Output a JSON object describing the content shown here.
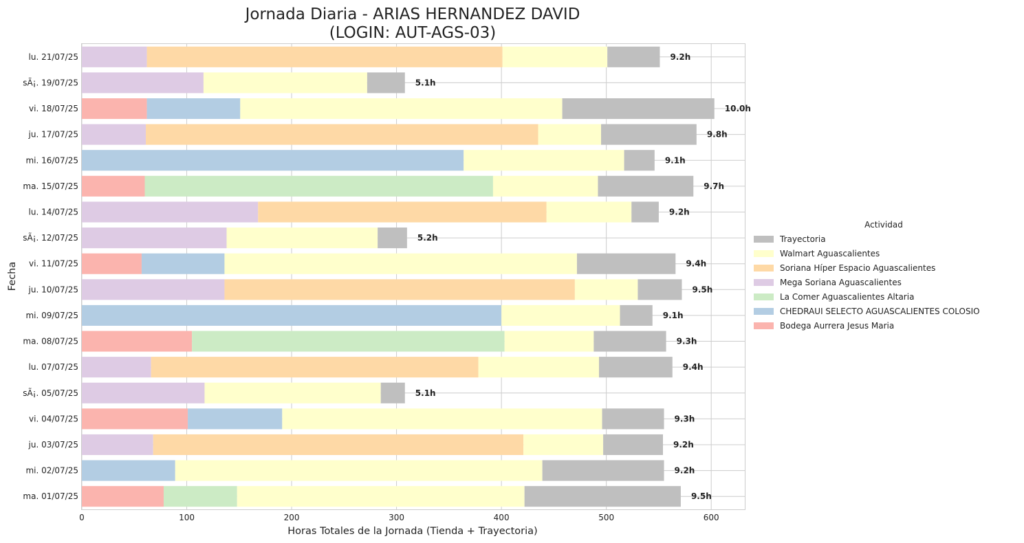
{
  "chart_data": {
    "type": "bar",
    "orientation": "horizontal",
    "stacked": true,
    "title": "Jornada Diaria - ARIAS HERNANDEZ DAVID",
    "subtitle": "(LOGIN: AUT-AGS-03)",
    "xlabel": "Horas Totales de la Jornada (Tienda + Trayectoria)",
    "ylabel": "Fecha",
    "xlim": [
      0,
      632
    ],
    "xticks": [
      0,
      100,
      200,
      300,
      400,
      500,
      600
    ],
    "grid": true,
    "legend_title": "Actividad",
    "legend_position": "center-right",
    "categories": [
      "lu. 21/07/25",
      "sÃ¡. 19/07/25",
      "vi. 18/07/25",
      "ju. 17/07/25",
      "mi. 16/07/25",
      "ma. 15/07/25",
      "lu. 14/07/25",
      "sÃ¡. 12/07/25",
      "vi. 11/07/25",
      "ju. 10/07/25",
      "mi. 09/07/25",
      "ma. 08/07/25",
      "lu. 07/07/25",
      "sÃ¡. 05/07/25",
      "vi. 04/07/25",
      "ju. 03/07/25",
      "mi. 02/07/25",
      "ma. 01/07/25"
    ],
    "totals": [
      "9.2h",
      "5.1h",
      "10.0h",
      "9.8h",
      "9.1h",
      "9.7h",
      "9.2h",
      "5.2h",
      "9.4h",
      "9.5h",
      "9.1h",
      "9.3h",
      "9.4h",
      "5.1h",
      "9.3h",
      "9.2h",
      "9.2h",
      "9.5h"
    ],
    "series": [
      {
        "name": "Bodega Aurrera Jesus Maria",
        "color": "#fbb4ae",
        "values": [
          0,
          0,
          62,
          0,
          0,
          60,
          0,
          0,
          57,
          0,
          0,
          105,
          0,
          0,
          101,
          0,
          0,
          78
        ]
      },
      {
        "name": "CHEDRAUI SELECTO AGUASCALIENTES  COLOSIO",
        "color": "#b3cde3",
        "values": [
          0,
          0,
          89,
          0,
          364,
          0,
          0,
          0,
          79,
          0,
          400,
          0,
          0,
          0,
          90,
          0,
          89,
          0
        ]
      },
      {
        "name": "La Comer Aguascalientes Altaria",
        "color": "#ccebc5",
        "values": [
          0,
          0,
          0,
          0,
          0,
          332,
          0,
          0,
          0,
          0,
          0,
          298,
          0,
          0,
          0,
          0,
          0,
          70
        ]
      },
      {
        "name": "Mega Soriana Aguascalientes",
        "color": "#decbe4",
        "values": [
          62,
          116,
          0,
          61,
          0,
          0,
          168,
          138,
          0,
          136,
          0,
          0,
          66,
          117,
          0,
          68,
          0,
          0
        ]
      },
      {
        "name": "Soriana Híper Espacio Aguascalientes",
        "color": "#fed9a6",
        "values": [
          339,
          0,
          0,
          374,
          0,
          0,
          275,
          0,
          0,
          334,
          0,
          0,
          312,
          0,
          0,
          353,
          0,
          0
        ]
      },
      {
        "name": "Walmart Aguascalientes",
        "color": "#ffffcc",
        "values": [
          100,
          156,
          307,
          60,
          153,
          100,
          81,
          144,
          336,
          60,
          113,
          85,
          115,
          168,
          305,
          76,
          350,
          274
        ]
      },
      {
        "name": "Trayectoria",
        "color": "#bfbfbf",
        "values": [
          50,
          36,
          145,
          91,
          29,
          91,
          26,
          28,
          94,
          42,
          31,
          69,
          70,
          23,
          59,
          57,
          116,
          149
        ]
      }
    ],
    "legend_order": [
      "Trayectoria",
      "Walmart Aguascalientes",
      "Soriana Híper Espacio Aguascalientes",
      "Mega Soriana Aguascalientes",
      "La Comer Aguascalientes Altaria",
      "CHEDRAUI SELECTO AGUASCALIENTES  COLOSIO",
      "Bodega Aurrera Jesus Maria"
    ]
  }
}
